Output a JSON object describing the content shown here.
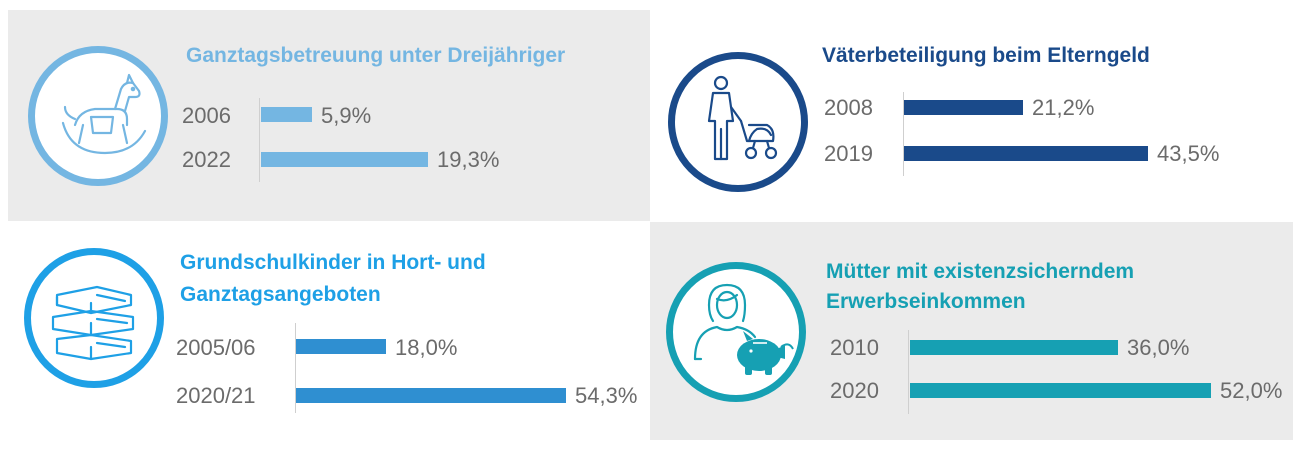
{
  "colors": {
    "panel_bg": "#ebebeb",
    "light_blue": "#74b6e2",
    "dark_blue": "#1a4a8a",
    "mid_blue": "#2f8fd1",
    "circle_blue": "#1ea0e6",
    "teal": "#16a0b3",
    "label_grey": "#6b6b6b"
  },
  "chart_data": [
    {
      "type": "bar",
      "title": "Ganztagsbetreuung unter Dreijähriger",
      "icon": "rocking-horse-icon",
      "categories": [
        "2006",
        "2022"
      ],
      "values": [
        5.9,
        19.3
      ],
      "labels": [
        "5,9%",
        "19,3%"
      ],
      "unit": "%"
    },
    {
      "type": "bar",
      "title": "Väterbeteiligung beim Elterngeld",
      "icon": "father-stroller-icon",
      "categories": [
        "2008",
        "2019"
      ],
      "values": [
        21.2,
        43.5
      ],
      "labels": [
        "21,2%",
        "43,5%"
      ],
      "unit": "%"
    },
    {
      "type": "bar",
      "title_lines": [
        "Grundschulkinder in Hort- und",
        "Ganztagsangeboten"
      ],
      "icon": "books-icon",
      "categories": [
        "2005/06",
        "2020/21"
      ],
      "values": [
        18.0,
        54.3
      ],
      "labels": [
        "18,0%",
        "54,3%"
      ],
      "unit": "%"
    },
    {
      "type": "bar",
      "title_lines": [
        "Mütter mit existenzsicherndem",
        "Erwerbseinkommen"
      ],
      "icon": "mother-piggy-bank-icon",
      "categories": [
        "2010",
        "2020"
      ],
      "values": [
        36.0,
        52.0
      ],
      "labels": [
        "36,0%",
        "52,0%"
      ],
      "unit": "%"
    }
  ]
}
